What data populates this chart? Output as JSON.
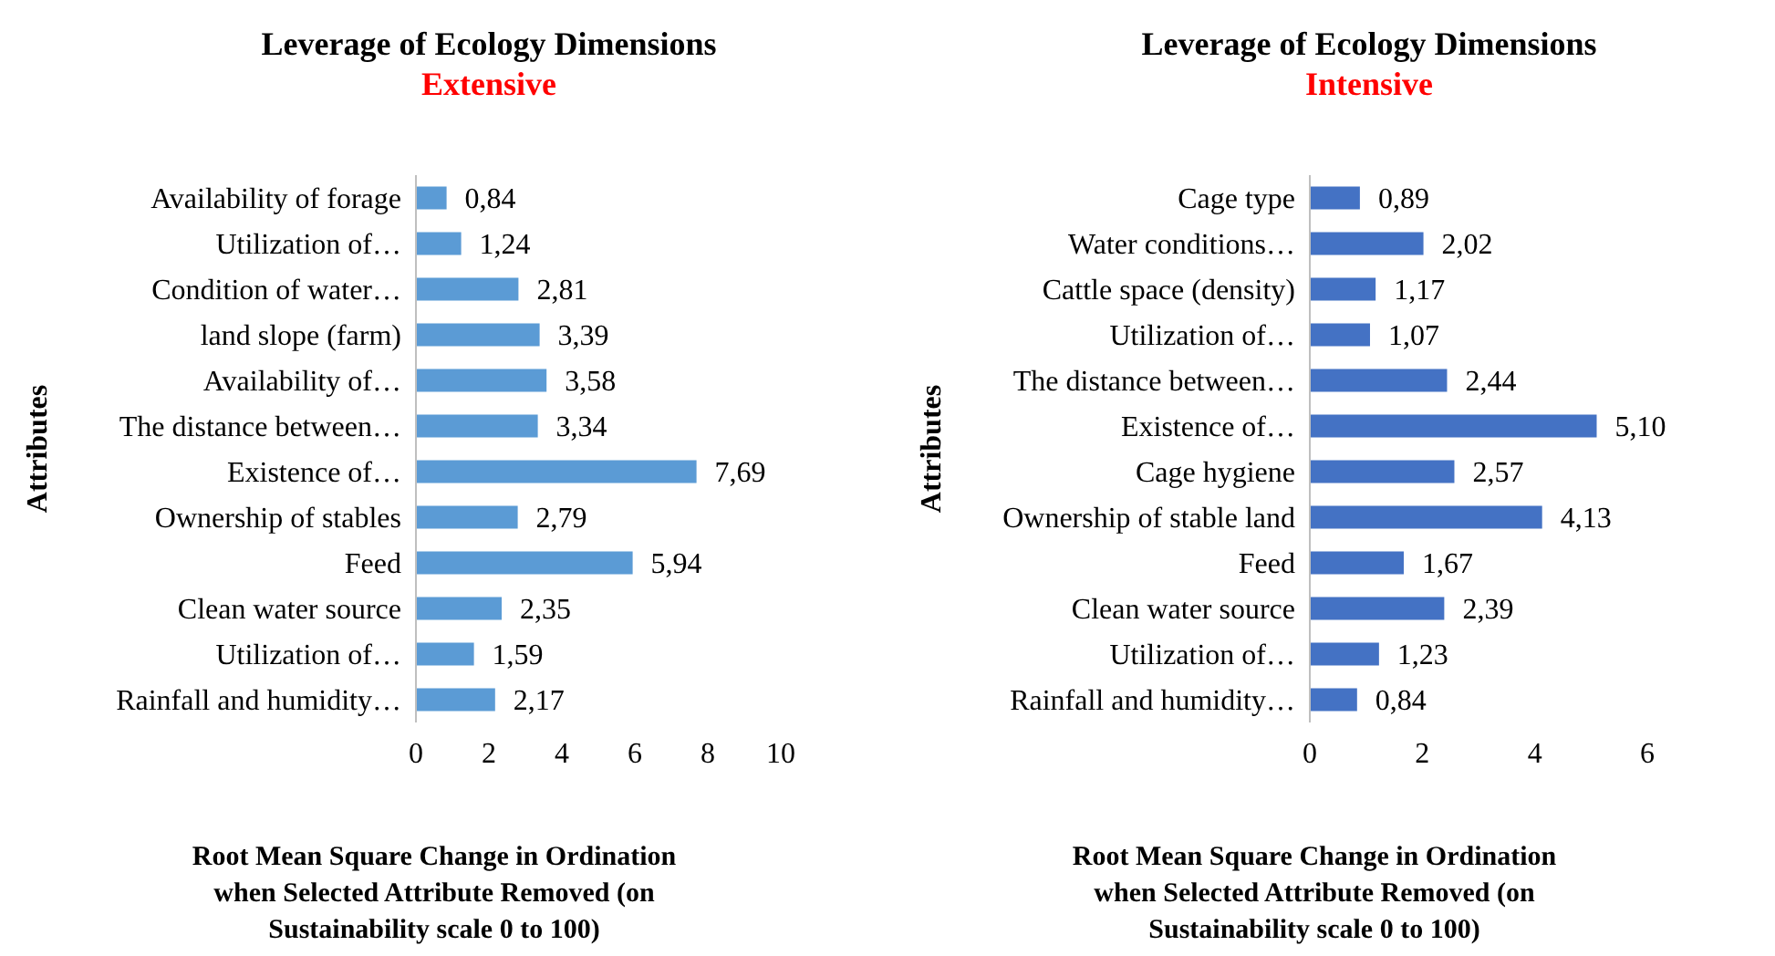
{
  "chart_data": [
    {
      "type": "bar",
      "orientation": "horizontal",
      "title": "Leverage of Ecology Dimensions",
      "subtitle": "Extensive",
      "ylabel": "Attributes",
      "xlabel": "Root Mean Square Change in Ordination when Selected Attribute Removed (on Sustainability scale 0 to 100)",
      "categories": [
        "Availability of forage",
        "Utilization of…",
        "Condition of water…",
        "land slope (farm)",
        "Availability of…",
        "The distance between…",
        "Existence of…",
        "Ownership of stables",
        "Feed",
        "Clean water source",
        "Utilization of…",
        "Rainfall and humidity…"
      ],
      "values": [
        0.84,
        1.24,
        2.81,
        3.39,
        3.58,
        3.34,
        7.69,
        2.79,
        5.94,
        2.35,
        1.59,
        2.17
      ],
      "value_labels": [
        "0,84",
        "1,24",
        "2,81",
        "3,39",
        "3,58",
        "3,34",
        "7,69",
        "2,79",
        "5,94",
        "2,35",
        "1,59",
        "2,17"
      ],
      "color": "#5b9bd5",
      "xlim": [
        0,
        10
      ],
      "xticks": [
        0,
        2,
        4,
        6,
        8,
        10
      ],
      "grid": false
    },
    {
      "type": "bar",
      "orientation": "horizontal",
      "title": "Leverage of Ecology Dimensions",
      "subtitle": "Intensive",
      "ylabel": "Attributes",
      "xlabel": "Root Mean Square Change in Ordination when Selected Attribute Removed (on Sustainability scale 0 to 100)",
      "categories": [
        "Cage type",
        "Water conditions…",
        "Cattle space (density)",
        "Utilization of…",
        "The distance between…",
        "Existence of…",
        "Cage hygiene",
        "Ownership of stable land",
        "Feed",
        "Clean water source",
        "Utilization of…",
        "Rainfall and humidity…"
      ],
      "values": [
        0.89,
        2.02,
        1.17,
        1.07,
        2.44,
        5.1,
        2.57,
        4.13,
        1.67,
        2.39,
        1.23,
        0.84
      ],
      "value_labels": [
        "0,89",
        "2,02",
        "1,17",
        "1,07",
        "2,44",
        "5,10",
        "2,57",
        "4,13",
        "1,67",
        "2,39",
        "1,23",
        "0,84"
      ],
      "color": "#4472c4",
      "xlim": [
        0,
        6
      ],
      "xticks": [
        0,
        2,
        4,
        6
      ],
      "grid": false
    }
  ]
}
